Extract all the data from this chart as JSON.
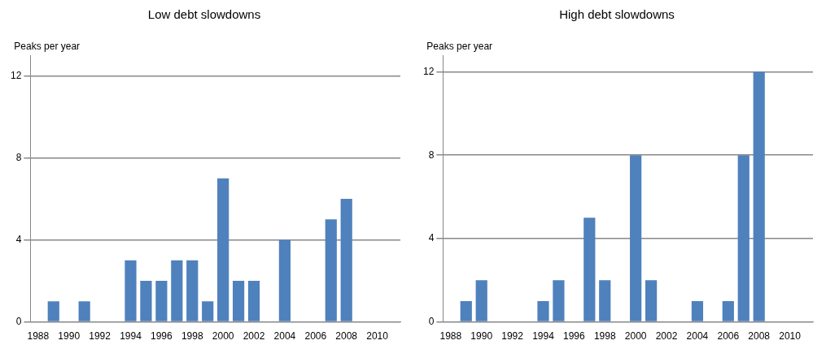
{
  "chart_data": [
    {
      "type": "bar",
      "title": "Low debt slowdowns",
      "ylabel": "Peaks per year",
      "categories": [
        "1988",
        null,
        "1990",
        null,
        "1992",
        null,
        "1994",
        null,
        "1996",
        null,
        "1998",
        null,
        "2000",
        null,
        "2002",
        null,
        "2004",
        null,
        "2006",
        null,
        "2008",
        null,
        "2010",
        null
      ],
      "values": [
        0,
        1,
        0,
        1,
        0,
        0,
        3,
        2,
        2,
        3,
        3,
        1,
        7,
        2,
        2,
        0,
        4,
        0,
        0,
        5,
        6,
        0,
        0,
        0
      ],
      "color": "#4f81bd",
      "ylim": [
        0,
        13
      ],
      "yticks": [
        0,
        4,
        8,
        12
      ],
      "grid": "y",
      "legend": false
    },
    {
      "type": "bar",
      "title": "High debt slowdowns",
      "ylabel": "Peaks per year",
      "categories": [
        "1988",
        null,
        "1990",
        null,
        "1992",
        null,
        "1994",
        null,
        "1996",
        null,
        "1998",
        null,
        "2000",
        null,
        "2002",
        null,
        "2004",
        null,
        "2006",
        null,
        "2008",
        null,
        "2010",
        null
      ],
      "values": [
        0,
        1,
        2,
        0,
        0,
        0,
        1,
        2,
        0,
        5,
        2,
        0,
        8,
        2,
        0,
        0,
        1,
        0,
        1,
        8,
        12,
        0,
        0,
        0
      ],
      "color": "#4f81bd",
      "ylim": [
        0,
        12.8
      ],
      "yticks": [
        0,
        4,
        8,
        12
      ],
      "grid": "y",
      "legend": false
    }
  ]
}
